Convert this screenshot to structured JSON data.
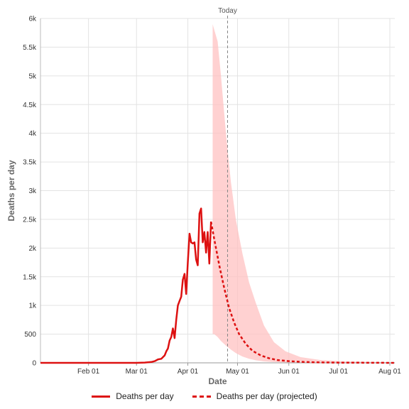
{
  "chart_data": {
    "type": "line",
    "xlabel": "Date",
    "ylabel": "Deaths per day",
    "x_range": [
      "2020-01-03",
      "2020-08-04"
    ],
    "ylim": [
      0,
      6000
    ],
    "y_ticks": [
      0,
      500,
      1000,
      1500,
      2000,
      2500,
      3000,
      3500,
      4000,
      4500,
      5000,
      5500,
      6000
    ],
    "y_tick_labels": [
      "0",
      "500",
      "1k",
      "1.5k",
      "2k",
      "2.5k",
      "3k",
      "3.5k",
      "4k",
      "4.5k",
      "5k",
      "5.5k",
      "6k"
    ],
    "x_ticks": [
      "2020-02-01",
      "2020-03-01",
      "2020-04-01",
      "2020-05-01",
      "2020-06-01",
      "2020-07-01",
      "2020-08-01"
    ],
    "x_tick_labels": [
      "Feb 01",
      "Mar 01",
      "Apr 01",
      "May 01",
      "Jun 01",
      "Jul 01",
      "Aug 01"
    ],
    "grid": true,
    "today": {
      "label": "Today",
      "date": "2020-04-25"
    },
    "legend_position": "bottom",
    "colors": {
      "line": "#dd1111",
      "band": "#ffc2c2",
      "grid": "#e3e3e3",
      "today_line": "#888888"
    },
    "series": [
      {
        "name": "Deaths per day",
        "style": "solid",
        "points": [
          [
            "2020-01-03",
            0
          ],
          [
            "2020-03-01",
            0
          ],
          [
            "2020-03-06",
            5
          ],
          [
            "2020-03-10",
            15
          ],
          [
            "2020-03-12",
            30
          ],
          [
            "2020-03-14",
            60
          ],
          [
            "2020-03-16",
            70
          ],
          [
            "2020-03-18",
            130
          ],
          [
            "2020-03-19",
            200
          ],
          [
            "2020-03-20",
            250
          ],
          [
            "2020-03-21",
            390
          ],
          [
            "2020-03-22",
            450
          ],
          [
            "2020-03-23",
            600
          ],
          [
            "2020-03-24",
            430
          ],
          [
            "2020-03-25",
            750
          ],
          [
            "2020-03-26",
            1000
          ],
          [
            "2020-03-27",
            1080
          ],
          [
            "2020-03-28",
            1150
          ],
          [
            "2020-03-29",
            1450
          ],
          [
            "2020-03-30",
            1550
          ],
          [
            "2020-03-31",
            1200
          ],
          [
            "2020-04-01",
            1750
          ],
          [
            "2020-04-02",
            2250
          ],
          [
            "2020-04-03",
            2100
          ],
          [
            "2020-04-04",
            2080
          ],
          [
            "2020-04-05",
            2100
          ],
          [
            "2020-04-06",
            1800
          ],
          [
            "2020-04-07",
            1700
          ],
          [
            "2020-04-08",
            2600
          ],
          [
            "2020-04-09",
            2690
          ],
          [
            "2020-04-10",
            2100
          ],
          [
            "2020-04-11",
            2280
          ],
          [
            "2020-04-12",
            1920
          ],
          [
            "2020-04-13",
            2280
          ],
          [
            "2020-04-14",
            1730
          ],
          [
            "2020-04-15",
            2460
          ]
        ]
      },
      {
        "name": "Deaths per day (projected)",
        "style": "dashed",
        "points": [
          [
            "2020-04-15",
            2460
          ],
          [
            "2020-04-17",
            2150
          ],
          [
            "2020-04-20",
            1700
          ],
          [
            "2020-04-23",
            1300
          ],
          [
            "2020-04-26",
            950
          ],
          [
            "2020-04-29",
            700
          ],
          [
            "2020-05-02",
            500
          ],
          [
            "2020-05-06",
            330
          ],
          [
            "2020-05-10",
            210
          ],
          [
            "2020-05-15",
            130
          ],
          [
            "2020-05-20",
            80
          ],
          [
            "2020-05-25",
            50
          ],
          [
            "2020-06-01",
            30
          ],
          [
            "2020-06-10",
            15
          ],
          [
            "2020-06-20",
            8
          ],
          [
            "2020-07-01",
            4
          ],
          [
            "2020-07-15",
            2
          ],
          [
            "2020-08-04",
            0
          ]
        ]
      }
    ],
    "uncertainty_band": {
      "series": "Deaths per day (projected)",
      "points": [
        [
          "2020-04-16",
          500,
          5900
        ],
        [
          "2020-04-17",
          500,
          5800
        ],
        [
          "2020-04-19",
          450,
          5600
        ],
        [
          "2020-04-21",
          380,
          5000
        ],
        [
          "2020-04-24",
          300,
          4000
        ],
        [
          "2020-04-27",
          230,
          3150
        ],
        [
          "2020-04-30",
          170,
          2500
        ],
        [
          "2020-05-04",
          110,
          1900
        ],
        [
          "2020-05-08",
          70,
          1400
        ],
        [
          "2020-05-12",
          45,
          1050
        ],
        [
          "2020-05-17",
          25,
          650
        ],
        [
          "2020-05-23",
          14,
          360
        ],
        [
          "2020-05-30",
          6,
          200
        ],
        [
          "2020-06-08",
          3,
          100
        ],
        [
          "2020-06-20",
          1,
          50
        ],
        [
          "2020-07-05",
          0,
          25
        ],
        [
          "2020-08-04",
          0,
          10
        ]
      ]
    }
  }
}
